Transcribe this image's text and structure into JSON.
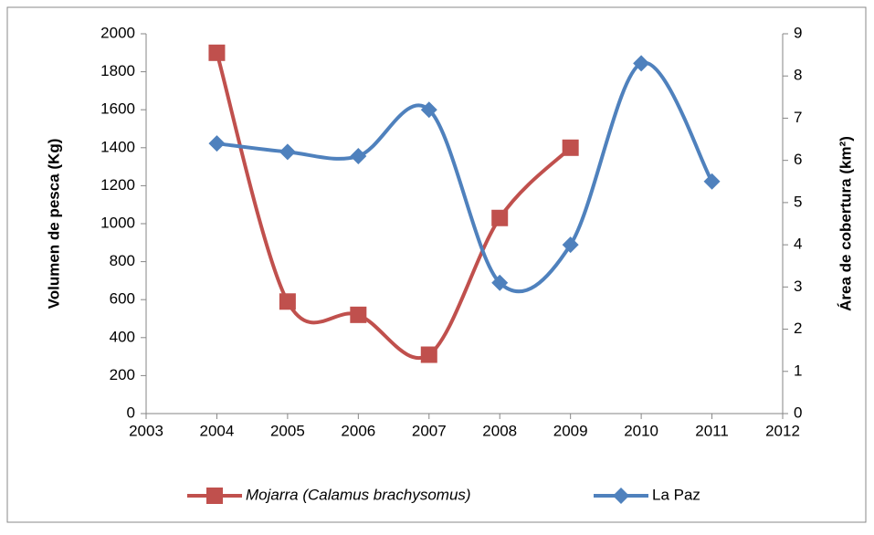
{
  "chart_data": {
    "type": "line",
    "series": [
      {
        "name": "Mojarra (Calamus brachysomus)",
        "color": "#c0504d",
        "marker": "square",
        "axis": "y",
        "x": [
          2004,
          2005,
          2006,
          2007,
          2008,
          2009
        ],
        "values": [
          1900,
          590,
          520,
          310,
          1030,
          1400
        ]
      },
      {
        "name": "La Paz",
        "color": "#4f81bd",
        "marker": "diamond",
        "axis": "y2",
        "x": [
          2004,
          2005,
          2006,
          2007,
          2008,
          2009,
          2010,
          2011
        ],
        "values": [
          6.4,
          6.2,
          6.1,
          7.2,
          3.1,
          4.0,
          8.3,
          5.5
        ]
      }
    ],
    "xlim": [
      2003,
      2012
    ],
    "xticks": [
      2003,
      2004,
      2005,
      2006,
      2007,
      2008,
      2009,
      2010,
      2011,
      2012
    ],
    "ylim": [
      0,
      2000
    ],
    "yticks": [
      0,
      200,
      400,
      600,
      800,
      1000,
      1200,
      1400,
      1600,
      1800,
      2000
    ],
    "y2lim": [
      0,
      9
    ],
    "y2ticks": [
      0,
      1,
      2,
      3,
      4,
      5,
      6,
      7,
      8,
      9
    ],
    "ylabel": "Volumen de pesca (Kg)",
    "y2label": "Área de cobertura (km²)",
    "smooth": true,
    "legend": "bottom"
  }
}
